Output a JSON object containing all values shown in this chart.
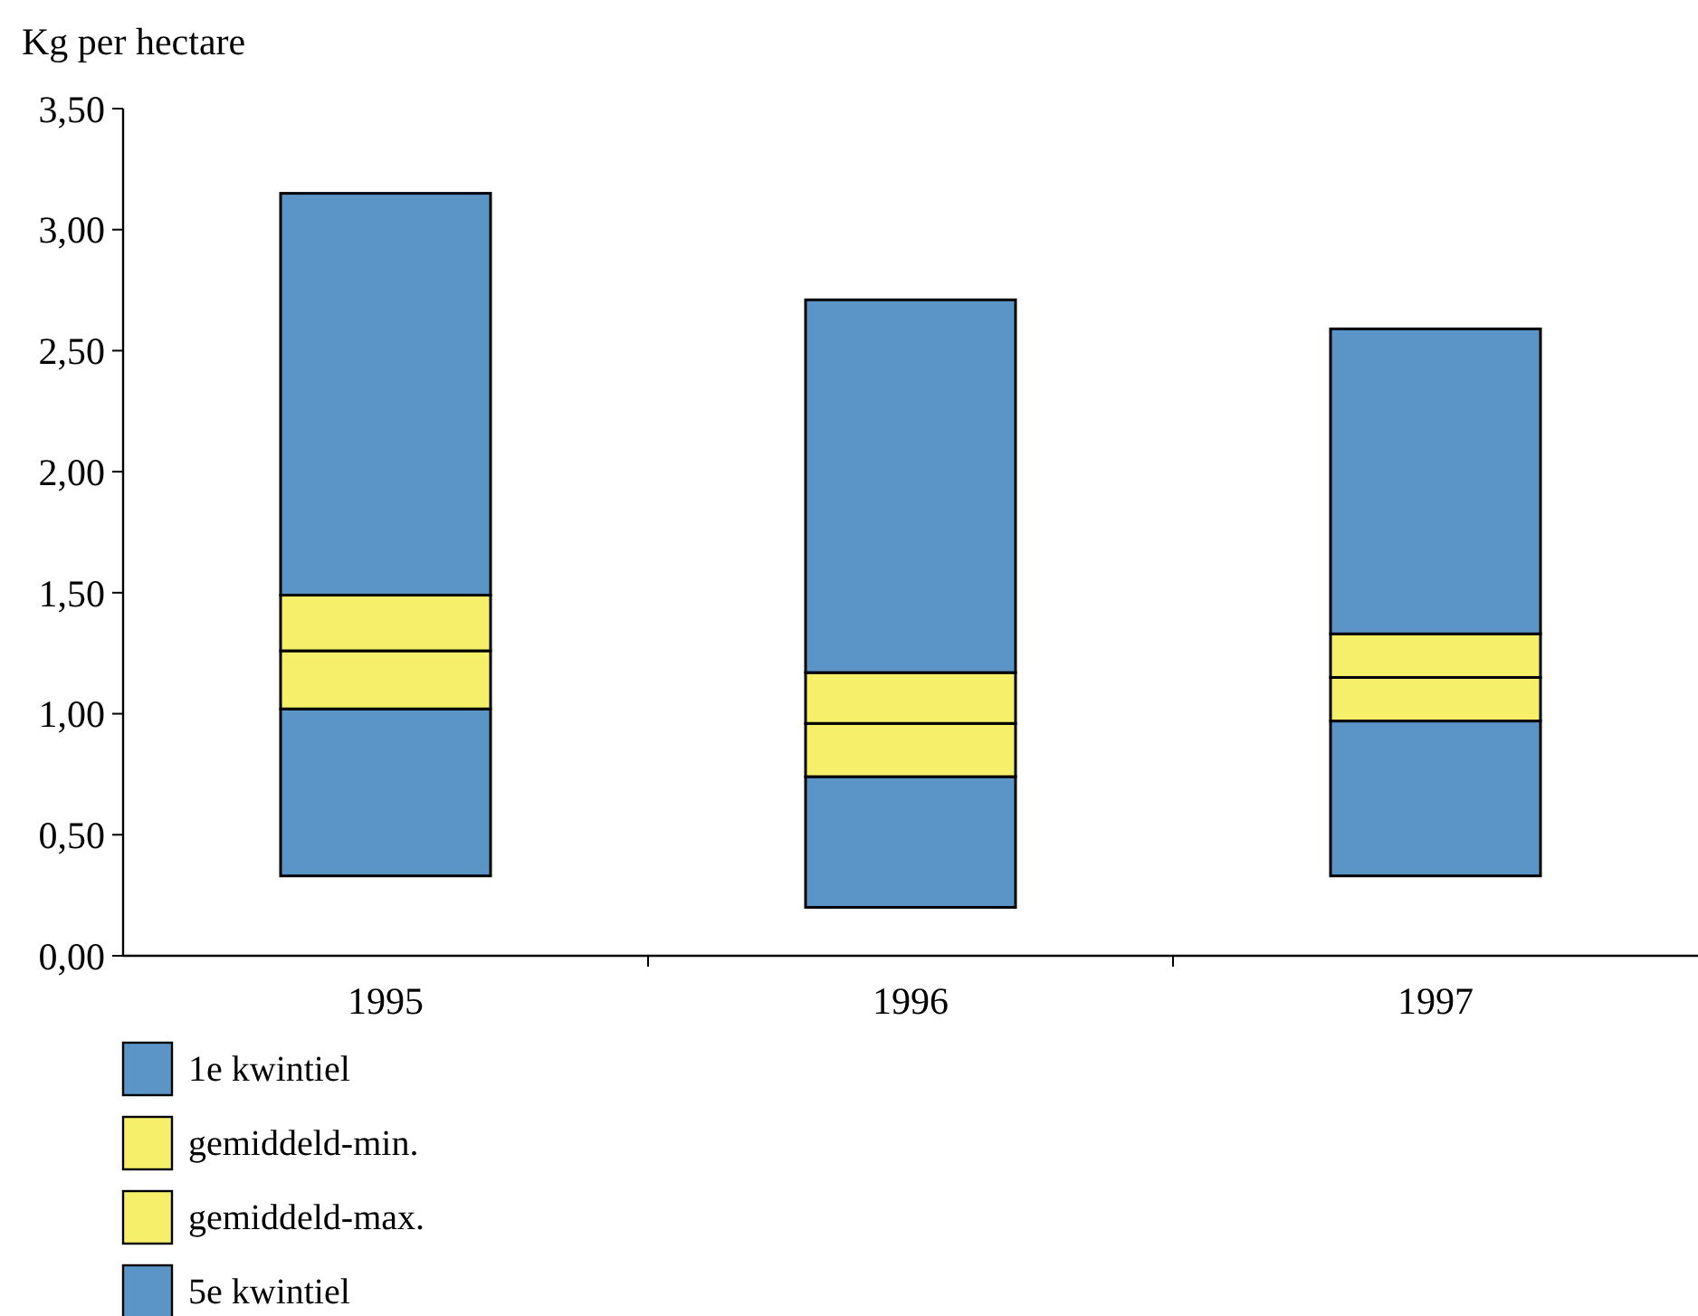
{
  "chart_data": {
    "type": "bar",
    "ylabel": "Kg per hectare",
    "categories": [
      "1995",
      "1996",
      "1997"
    ],
    "series": [
      {
        "name": "1e kwintiel",
        "color": "#5b95c8",
        "base": [
          0.33,
          0.2,
          0.33
        ],
        "values": [
          0.69,
          0.54,
          0.64
        ]
      },
      {
        "name": "gemiddeld-min.",
        "color": "#f5ef6a",
        "base": [
          1.02,
          0.74,
          0.97
        ],
        "values": [
          0.24,
          0.22,
          0.18
        ]
      },
      {
        "name": "gemiddeld-max.",
        "color": "#f5ef6a",
        "base": [
          1.26,
          0.96,
          1.15
        ],
        "values": [
          0.23,
          0.21,
          0.18
        ]
      },
      {
        "name": "5e kwintiel",
        "color": "#5b95c8",
        "base": [
          1.49,
          1.17,
          1.33
        ],
        "values": [
          1.66,
          1.54,
          1.26
        ]
      }
    ],
    "ylim": [
      0,
      3.5
    ],
    "yticks": [
      {
        "value": 0,
        "label": "0,00"
      },
      {
        "value": 0.5,
        "label": "0,50"
      },
      {
        "value": 1,
        "label": "1,00"
      },
      {
        "value": 1.5,
        "label": "1,50"
      },
      {
        "value": 2,
        "label": "2,00"
      },
      {
        "value": 2.5,
        "label": "2,50"
      },
      {
        "value": 3,
        "label": "3,00"
      },
      {
        "value": 3.5,
        "label": "3,50"
      }
    ],
    "grid": false,
    "legend": "bottom"
  }
}
